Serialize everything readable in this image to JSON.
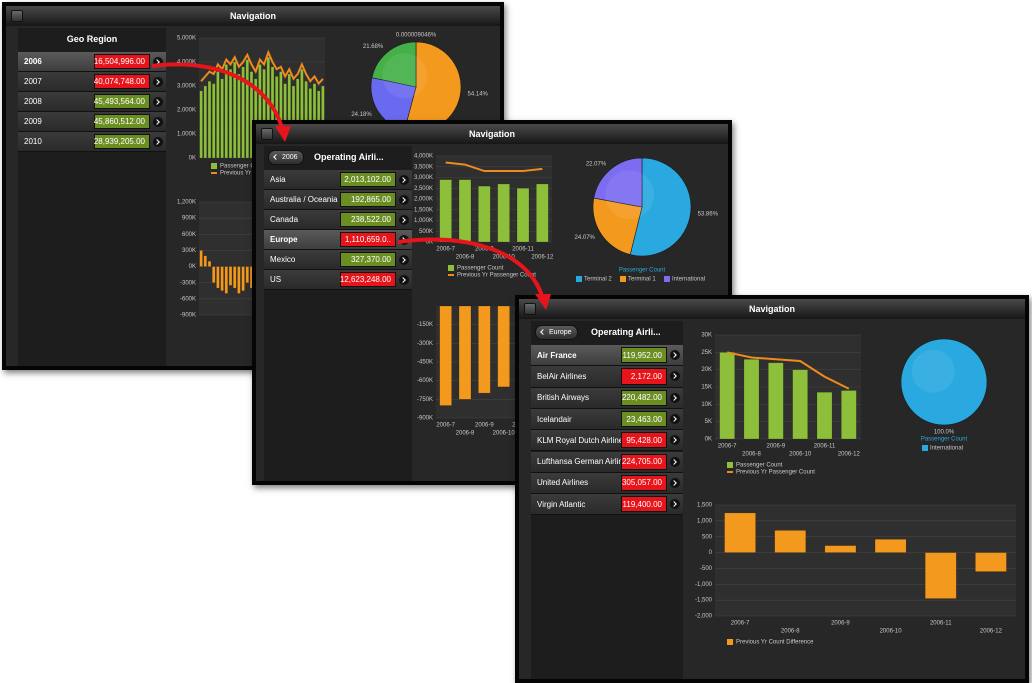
{
  "windows": [
    {
      "title": "Navigation",
      "header": "Geo Region",
      "rows": [
        {
          "label": "2006",
          "value": "16,504,996.00",
          "color": "#e8141b",
          "selected": true
        },
        {
          "label": "2007",
          "value": "40,074,748.00",
          "color": "#e8141b"
        },
        {
          "label": "2008",
          "value": "45,493,564.00",
          "color": "#6b8e23"
        },
        {
          "label": "2009",
          "value": "45,860,512.00",
          "color": "#6b8e23"
        },
        {
          "label": "2010",
          "value": "28,939,205.00",
          "color": "#6b8e23"
        }
      ],
      "charts": [
        {
          "type": "bar",
          "ylim": [
            0,
            5000000
          ],
          "yticks": [
            {
              "value": 5000000,
              "label": "5,000K"
            },
            {
              "value": 4000000,
              "label": "4,000K"
            },
            {
              "value": 3000000,
              "label": "3,000K"
            },
            {
              "value": 2000000,
              "label": "2,000K"
            },
            {
              "value": 1000000,
              "label": "1,000K"
            },
            {
              "value": 0,
              "label": "0K"
            }
          ],
          "series": [
            {
              "name": "Passenger Count",
              "color": "#8dbf3a",
              "values": [
                2800000,
                3000000,
                3200000,
                3100000,
                3600000,
                3300000,
                3900000,
                3700000,
                4000000,
                3500000,
                3800000,
                4100000,
                3600000,
                3300000,
                3900000,
                3700000,
                4200000,
                3800000,
                3400000,
                3600000,
                3100000,
                3500000,
                3000000,
                3300000,
                3700000,
                3200000,
                2900000,
                3100000,
                2800000,
                3000000
              ]
            },
            {
              "name": "Previous Yr Passenger Count",
              "color": "#f08a1c",
              "kind": "line",
              "values": [
                3200000,
                3400000,
                3600000,
                3500000,
                3900000,
                3700000,
                4100000,
                3900000,
                4200000,
                3800000,
                4000000,
                4300000,
                3900000,
                3600000,
                4100000,
                3900000,
                4400000,
                4000000,
                3700000,
                3800000,
                3400000,
                3700000,
                3300000,
                3500000,
                3900000,
                3500000,
                3200000,
                3400000,
                3100000,
                3300000
              ]
            }
          ]
        },
        {
          "type": "pie",
          "values": [
            9.046e-06,
            54.14,
            24.18,
            21.68
          ],
          "value_labels": [
            "0.000009046%",
            "54.14%",
            "24.18%",
            "21.68%"
          ],
          "colors": [
            "#c0392b",
            "#f39a1e",
            "#6a6af0",
            "#45b048"
          ]
        },
        {
          "type": "bar",
          "ylim": [
            -900000,
            1200000
          ],
          "yticks": [
            {
              "value": 1200000,
              "label": "1,200K"
            },
            {
              "value": 900000,
              "label": "900K"
            },
            {
              "value": 600000,
              "label": "600K"
            },
            {
              "value": 300000,
              "label": "300K"
            },
            {
              "value": 0,
              "label": "0K"
            },
            {
              "value": -300000,
              "label": "-300K"
            },
            {
              "value": -600000,
              "label": "-600K"
            },
            {
              "value": -900000,
              "label": "-900K"
            }
          ],
          "series": [
            {
              "color": "#f39a1e",
              "values": [
                300000,
                200000,
                100000,
                -300000,
                -400000,
                -450000,
                -500000,
                -350000,
                -400000,
                -500000,
                -450000,
                -300000,
                -400000,
                -550000,
                -450000,
                -350000,
                -400000,
                -500000,
                -450000,
                -300000,
                -400000,
                -350000,
                -450000,
                -500000,
                -400000,
                -300000,
                -350000,
                -450000,
                -400000,
                -300000
              ]
            }
          ]
        }
      ]
    },
    {
      "title": "Navigation",
      "back": "2006",
      "header": "Operating Airli...",
      "rows": [
        {
          "label": "Asia",
          "value": "2,013,102.00",
          "color": "#6b8e23"
        },
        {
          "label": "Australia / Oceania",
          "value": "192,865.00",
          "color": "#6b8e23"
        },
        {
          "label": "Canada",
          "value": "238,522.00",
          "color": "#6b8e23"
        },
        {
          "label": "Europe",
          "value": "1,110,659.0..",
          "color": "#e8141b",
          "selected": true
        },
        {
          "label": "Mexico",
          "value": "327,370.00",
          "color": "#6b8e23"
        },
        {
          "label": "US",
          "value": "12,623,248.00",
          "color": "#e8141b"
        }
      ],
      "charts": [
        {
          "type": "bar",
          "ylim": [
            0,
            4000000
          ],
          "yticks": [
            {
              "value": 4000000,
              "label": "4,000K"
            },
            {
              "value": 3500000,
              "label": "3,500K"
            },
            {
              "value": 3000000,
              "label": "3,000K"
            },
            {
              "value": 2500000,
              "label": "2,500K"
            },
            {
              "value": 2000000,
              "label": "2,000K"
            },
            {
              "value": 1500000,
              "label": "1,500K"
            },
            {
              "value": 1000000,
              "label": "1,000K"
            },
            {
              "value": 500000,
              "label": "500K"
            },
            {
              "value": 0,
              "label": "0K"
            }
          ],
          "categories": [
            "2006-7",
            "2006-8",
            "2006-9",
            "2006-10",
            "2006-11",
            "2006-12"
          ],
          "series": [
            {
              "name": "Passenger Count",
              "color": "#8dbf3a",
              "values": [
                2900000,
                2900000,
                2600000,
                2700000,
                2500000,
                2700000
              ]
            },
            {
              "name": "Previous Yr Passenger Count",
              "color": "#f08a1c",
              "kind": "line",
              "values": [
                3700000,
                3600000,
                3300000,
                3300000,
                3300000,
                3400000
              ]
            }
          ]
        },
        {
          "type": "pie",
          "values": [
            53.86,
            24.07,
            22.07
          ],
          "value_labels": [
            "53.86%",
            "24.07%",
            "22.07%"
          ],
          "colors": [
            "#29a9e0",
            "#f39a1e",
            "#7b6cf0"
          ],
          "subtitle": "Passenger Count",
          "labels": [
            "Terminal 2",
            "Terminal 1",
            "International"
          ]
        },
        {
          "type": "bar",
          "ylim": [
            -900000,
            0
          ],
          "yticks": [
            {
              "value": -150000,
              "label": "-150K"
            },
            {
              "value": -300000,
              "label": "-300K"
            },
            {
              "value": -450000,
              "label": "-450K"
            },
            {
              "value": -600000,
              "label": "-600K"
            },
            {
              "value": -750000,
              "label": "-750K"
            },
            {
              "value": -900000,
              "label": "-900K"
            }
          ],
          "categories": [
            "2006-7",
            "2006-8",
            "2006-9",
            "2006-10",
            "2006-11",
            "2006-12"
          ],
          "series": [
            {
              "color": "#f39a1e",
              "values": [
                -800000,
                -750000,
                -700000,
                -650000,
                -850000,
                -500000
              ]
            }
          ]
        }
      ]
    },
    {
      "title": "Navigation",
      "back": "Europe",
      "header": "Operating Airli...",
      "rows": [
        {
          "label": "Air France",
          "value": "119,952.00",
          "color": "#6b8e23",
          "selected": true
        },
        {
          "label": "BelAir Airlines",
          "value": "2,172.00",
          "color": "#e8141b"
        },
        {
          "label": "British Airways",
          "value": "220,482.00",
          "color": "#6b8e23"
        },
        {
          "label": "Icelandair",
          "value": "23,463.00",
          "color": "#6b8e23"
        },
        {
          "label": "KLM Royal Dutch Airlines",
          "value": "95,428.00",
          "color": "#e8141b"
        },
        {
          "label": "Lufthansa German Airlin",
          "value": "224,705.00",
          "color": "#e8141b"
        },
        {
          "label": "United Airlines",
          "value": "305,057.00",
          "color": "#e8141b"
        },
        {
          "label": "Virgin Atlantic",
          "value": "119,400.00",
          "color": "#e8141b"
        }
      ],
      "charts": [
        {
          "type": "bar",
          "ylim": [
            0,
            30000
          ],
          "yticks": [
            {
              "value": 30000,
              "label": "30K"
            },
            {
              "value": 25000,
              "label": "25K"
            },
            {
              "value": 20000,
              "label": "20K"
            },
            {
              "value": 15000,
              "label": "15K"
            },
            {
              "value": 10000,
              "label": "10K"
            },
            {
              "value": 5000,
              "label": "5K"
            },
            {
              "value": 0,
              "label": "0K"
            }
          ],
          "categories": [
            "2006-7",
            "2006-8",
            "2006-9",
            "2006-10",
            "2006-11",
            "2006-12"
          ],
          "series": [
            {
              "name": "Passenger Count",
              "color": "#8dbf3a",
              "values": [
                25000,
                23000,
                22000,
                20000,
                13500,
                14000
              ]
            },
            {
              "name": "Previous Yr Passenger Count",
              "color": "#f08a1c",
              "kind": "line",
              "values": [
                25000,
                23500,
                23000,
                22500,
                18000,
                14500
              ]
            }
          ]
        },
        {
          "type": "pie",
          "values": [
            100.0
          ],
          "value_labels": [
            "100.0%"
          ],
          "colors": [
            "#29a9e0"
          ],
          "subtitle": "Passenger Count",
          "labels": [
            "International"
          ]
        },
        {
          "type": "bar",
          "ylim": [
            -2000,
            1500
          ],
          "yticks": [
            {
              "value": 1500,
              "label": "1,500"
            },
            {
              "value": 1000,
              "label": "1,000"
            },
            500,
            0,
            -500,
            {
              "value": -1000,
              "label": "-1,000"
            },
            {
              "value": -1500,
              "label": "-1,500"
            },
            {
              "value": -2000,
              "label": "-2,000"
            }
          ],
          "categories": [
            "2006-7",
            "2006-8",
            "2006-9",
            "2006-10",
            "2006-11",
            "2006-12"
          ],
          "series": [
            {
              "name": "Previous Yr Count Difference",
              "color": "#f39a1e",
              "values": [
                1250,
                700,
                220,
                420,
                -1450,
                -600
              ]
            }
          ]
        }
      ]
    }
  ]
}
